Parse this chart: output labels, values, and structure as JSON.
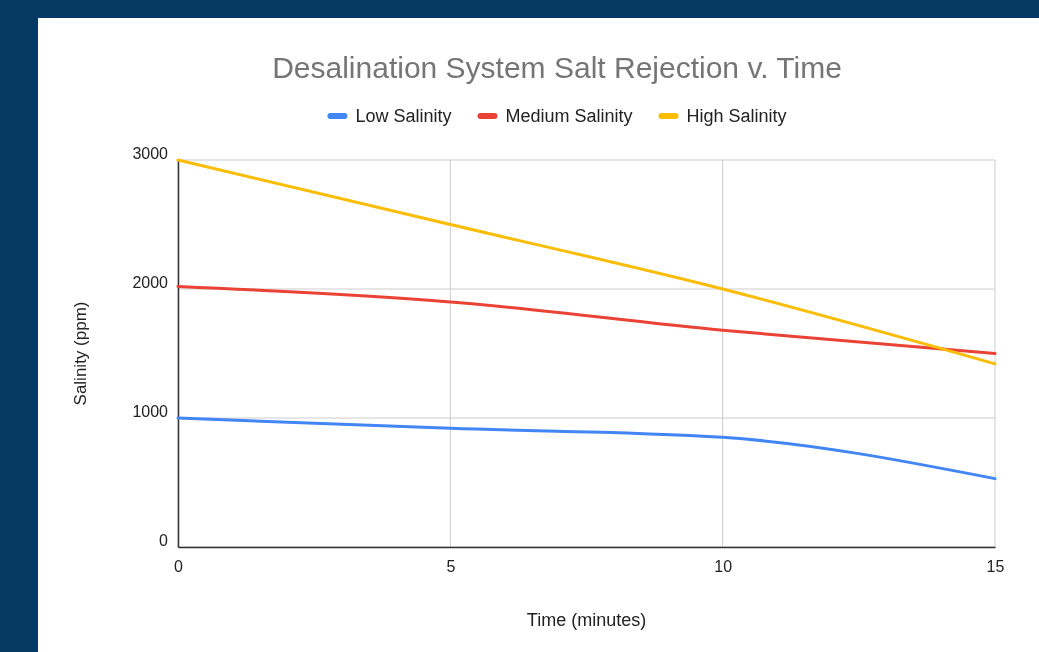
{
  "chart_data": {
    "type": "line",
    "title": "Desalination System Salt Rejection v. Time",
    "xlabel": "Time (minutes)",
    "ylabel": "Salinity (ppm)",
    "x": [
      0,
      5,
      10,
      15
    ],
    "xlim": [
      0,
      15
    ],
    "xticks": [
      0,
      5,
      10,
      15
    ],
    "ylim": [
      0,
      3000
    ],
    "yticks": [
      0,
      1000,
      2000,
      3000
    ],
    "grid": true,
    "legend": "top",
    "series": [
      {
        "name": "Low Salinity",
        "color": "#4285f4",
        "values": [
          1000,
          920,
          850,
          530
        ]
      },
      {
        "name": "Medium Salinity",
        "color": "#ea4335",
        "values": [
          2020,
          1900,
          1680,
          1500
        ]
      },
      {
        "name": "High Salinity",
        "color": "#fbbc04",
        "values": [
          3000,
          2500,
          2000,
          1420
        ]
      }
    ]
  }
}
